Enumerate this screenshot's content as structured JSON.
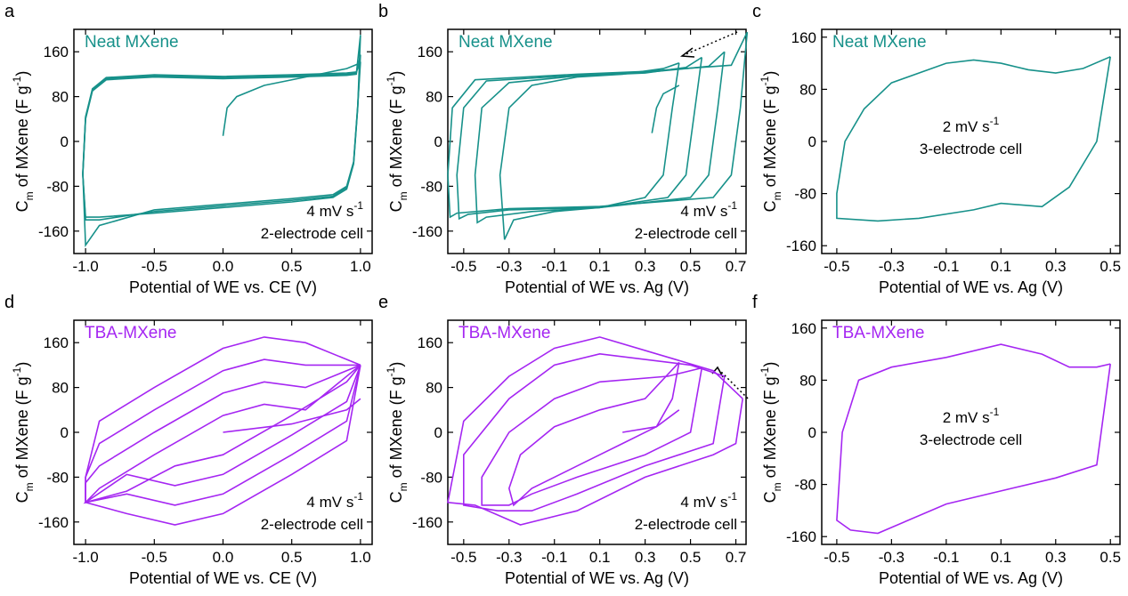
{
  "chart_data": [
    {
      "type": "line",
      "panel": "a",
      "label": "Neat MXene",
      "color": "#17918a",
      "annotation": {
        "main": "4 mV s",
        "sup": "-1",
        "line2": "2-electrode cell"
      },
      "xlabel": "Potential of WE vs. CE (V)",
      "ylabel": {
        "main": "C",
        "sub": "m",
        "rest": " of MXene (F g",
        "sup": "-1",
        "end": ")"
      },
      "xlim": [
        -1.085,
        1.085
      ],
      "ylim": [
        -200,
        200
      ],
      "xticks": [
        {
          "value": -1,
          "label": "-1.0"
        },
        -0.5,
        {
          "value": 0,
          "label": "0.0"
        },
        0.5,
        {
          "value": 1,
          "label": "1.0"
        }
      ],
      "yticks": [
        -160,
        -80,
        0,
        80,
        160
      ],
      "series": [
        {
          "x": [
            1.0,
            0.97,
            0.9,
            0.5,
            0,
            -0.5,
            -0.85,
            -0.95,
            -1.0,
            -1.02,
            -1.0,
            -0.9,
            -0.5,
            0,
            0.5,
            0.8,
            0.9,
            0.95,
            0.98,
            1.0
          ],
          "values": [
            190,
            120,
            118,
            115,
            112,
            115,
            110,
            90,
            40,
            -60,
            -135,
            -135,
            -128,
            -118,
            -108,
            -100,
            -85,
            -40,
            60,
            190
          ]
        },
        {
          "x": [
            1.0,
            0.97,
            0.9,
            0.5,
            0,
            -0.5,
            -0.85,
            -0.95,
            -1.0,
            -1.02,
            -1.0,
            -0.9,
            -0.5,
            0,
            0.5,
            0.8,
            0.9,
            0.95,
            0.98,
            1.0
          ],
          "values": [
            155,
            122,
            120,
            117,
            114,
            117,
            112,
            92,
            42,
            -58,
            -140,
            -140,
            -125,
            -115,
            -105,
            -98,
            -82,
            -38,
            62,
            155
          ]
        },
        {
          "x": [
            1.0,
            0.97,
            0.9,
            0.5,
            0,
            -0.5,
            -0.85,
            -0.95,
            -1.0,
            -1.02,
            -1.0,
            -0.9,
            -0.5,
            0,
            0.5,
            0.8,
            0.9,
            0.95,
            0.98,
            1.0
          ],
          "values": [
            142,
            124,
            122,
            119,
            116,
            119,
            114,
            94,
            44,
            -56,
            -185,
            -150,
            -122,
            -112,
            -102,
            -95,
            -80,
            -36,
            64,
            142
          ]
        },
        {
          "x": [
            0,
            0.03,
            0.1,
            0.3,
            0.6,
            0.9,
            1.0
          ],
          "values": [
            10,
            60,
            80,
            100,
            115,
            130,
            140
          ]
        }
      ]
    },
    {
      "type": "line",
      "panel": "b",
      "label": "Neat MXene",
      "color": "#17918a",
      "annotation": {
        "main": "4 mV s",
        "sup": "-1",
        "line2": "2-electrode cell"
      },
      "xlabel": "Potential of WE vs. Ag (V)",
      "ylabel": {
        "main": "C",
        "sub": "m",
        "rest": " of MXene (F g",
        "sup": "-1",
        "end": ")"
      },
      "xlim": [
        -0.57,
        0.745
      ],
      "ylim": [
        -200,
        200
      ],
      "xticks": [
        -0.5,
        -0.3,
        -0.1,
        0.1,
        0.3,
        0.5,
        0.7
      ],
      "yticks": [
        -160,
        -80,
        0,
        80,
        160
      ],
      "series": [
        {
          "x": [
            0.45,
            0.42,
            0.38,
            0.3,
            0.1,
            -0.1,
            -0.28,
            -0.32,
            -0.34,
            -0.3,
            -0.2,
            0,
            0.2,
            0.38,
            0.45
          ],
          "values": [
            140,
            60,
            -60,
            -100,
            -118,
            -125,
            -140,
            -175,
            -60,
            60,
            100,
            115,
            120,
            130,
            140
          ]
        },
        {
          "x": [
            0.55,
            0.52,
            0.48,
            0.4,
            0.1,
            -0.2,
            -0.4,
            -0.44,
            -0.45,
            -0.42,
            -0.3,
            0,
            0.3,
            0.48,
            0.55
          ],
          "values": [
            150,
            60,
            -60,
            -100,
            -118,
            -125,
            -135,
            -145,
            -60,
            60,
            105,
            117,
            122,
            132,
            150
          ]
        },
        {
          "x": [
            0.65,
            0.62,
            0.58,
            0.5,
            0.1,
            -0.3,
            -0.48,
            -0.52,
            -0.53,
            -0.5,
            -0.4,
            0,
            0.3,
            0.58,
            0.65
          ],
          "values": [
            160,
            60,
            -60,
            -100,
            -118,
            -122,
            -130,
            -138,
            -60,
            60,
            108,
            118,
            123,
            134,
            160
          ]
        },
        {
          "x": [
            0.75,
            0.72,
            0.68,
            0.6,
            0.1,
            -0.3,
            -0.53,
            -0.56,
            -0.57,
            -0.55,
            -0.45,
            0,
            0.3,
            0.68,
            0.75
          ],
          "values": [
            195,
            60,
            -60,
            -100,
            -116,
            -120,
            -128,
            -135,
            -60,
            60,
            110,
            120,
            125,
            136,
            195
          ]
        },
        {
          "x": [
            0.33,
            0.35,
            0.38,
            0.45
          ],
          "values": [
            15,
            60,
            85,
            100
          ]
        }
      ]
    },
    {
      "type": "line",
      "panel": "c",
      "label": "Neat MXene",
      "color": "#17918a",
      "annotation": {
        "main": "2 mV s",
        "sup": "-1",
        "line2": "3-electrode cell"
      },
      "xlabel": "Potential of WE vs. Ag (V)",
      "ylabel": {
        "main": "C",
        "sub": "m",
        "rest": " of MXene (F g",
        "sup": "-1",
        "end": ")"
      },
      "xlim": [
        -0.555,
        0.535
      ],
      "ylim": [
        -172,
        172
      ],
      "xticks": [
        -0.5,
        -0.3,
        -0.1,
        0.1,
        0.3,
        0.5
      ],
      "yticks": [
        -160,
        -80,
        0,
        80,
        160
      ],
      "series": [
        {
          "x": [
            0.5,
            0.45,
            0.35,
            0.25,
            0.1,
            0,
            -0.2,
            -0.35,
            -0.5,
            -0.5,
            -0.47,
            -0.4,
            -0.3,
            -0.1,
            0,
            0.1,
            0.2,
            0.3,
            0.4,
            0.5
          ],
          "values": [
            130,
            0,
            -70,
            -100,
            -95,
            -105,
            -118,
            -122,
            -118,
            -80,
            0,
            50,
            90,
            120,
            125,
            120,
            110,
            105,
            112,
            130
          ]
        }
      ]
    },
    {
      "type": "line",
      "panel": "d",
      "label": "TBA-MXene",
      "color": "#a526f2",
      "annotation": {
        "main": "4 mV s",
        "sup": "-1",
        "line2": "2-electrode cell"
      },
      "xlabel": "Potential of WE vs. CE (V)",
      "ylabel": {
        "main": "C",
        "sub": "m",
        "rest": " of MXene (F g",
        "sup": "-1",
        "end": ")"
      },
      "xlim": [
        -1.085,
        1.085
      ],
      "ylim": [
        -200,
        200
      ],
      "xticks": [
        {
          "value": -1,
          "label": "-1.0"
        },
        -0.5,
        {
          "value": 0,
          "label": "0.0"
        },
        0.5,
        {
          "value": 1,
          "label": "1.0"
        }
      ],
      "yticks": [
        -160,
        -80,
        0,
        80,
        160
      ],
      "series": [
        {
          "x": [
            1,
            0.6,
            0.3,
            0,
            -0.5,
            -0.9,
            -1.0,
            -1.0,
            -0.7,
            -0.35,
            0,
            0.5,
            0.9,
            1.0
          ],
          "values": [
            120,
            160,
            170,
            150,
            80,
            20,
            -80,
            -125,
            -145,
            -165,
            -145,
            -75,
            -15,
            120
          ]
        },
        {
          "x": [
            1,
            0.6,
            0.3,
            0,
            -0.5,
            -0.9,
            -1.0,
            -1.0,
            -0.7,
            -0.35,
            0,
            0.5,
            0.9,
            1.0
          ],
          "values": [
            120,
            120,
            130,
            110,
            40,
            -20,
            -80,
            -125,
            -110,
            -130,
            -110,
            -40,
            20,
            120
          ]
        },
        {
          "x": [
            1,
            0.6,
            0.3,
            0,
            -0.5,
            -0.9,
            -1.0,
            -1.0,
            -0.7,
            -0.35,
            0,
            0.5,
            0.9,
            1.0
          ],
          "values": [
            120,
            80,
            90,
            70,
            0,
            -60,
            -90,
            -125,
            -75,
            -95,
            -75,
            -5,
            55,
            120
          ]
        },
        {
          "x": [
            1,
            0.6,
            0.3,
            0,
            -0.5,
            -0.9,
            -1.0,
            -0.7,
            -0.35,
            0,
            0.5,
            0.9,
            1.0
          ],
          "values": [
            120,
            40,
            50,
            30,
            -40,
            -100,
            -125,
            -105,
            -60,
            -40,
            30,
            90,
            120
          ]
        },
        {
          "x": [
            0,
            0.5,
            0.9,
            1.0
          ],
          "values": [
            0,
            15,
            40,
            60
          ]
        }
      ]
    },
    {
      "type": "line",
      "panel": "e",
      "label": "TBA-MXene",
      "color": "#a526f2",
      "annotation": {
        "main": "4 mV s",
        "sup": "-1",
        "line2": "2-electrode cell"
      },
      "xlabel": "Potential of WE vs. Ag (V)",
      "ylabel": {
        "main": "C",
        "sub": "m",
        "rest": " of MXene (F g",
        "sup": "-1",
        "end": ")"
      },
      "xlim": [
        -0.57,
        0.745
      ],
      "ylim": [
        -200,
        200
      ],
      "xticks": [
        -0.5,
        -0.3,
        -0.1,
        0.1,
        0.3,
        0.5,
        0.7
      ],
      "yticks": [
        -160,
        -80,
        0,
        80,
        160
      ],
      "series": [
        {
          "x": [
            0.45,
            0.3,
            0.1,
            -0.1,
            -0.25,
            -0.3,
            -0.28,
            -0.2,
            0,
            0.2,
            0.35,
            0.42,
            0.45
          ],
          "values": [
            125,
            60,
            40,
            10,
            -40,
            -100,
            -130,
            -100,
            -60,
            -20,
            10,
            60,
            125
          ]
        },
        {
          "x": [
            0.55,
            0.4,
            0.1,
            -0.1,
            -0.3,
            -0.42,
            -0.42,
            -0.3,
            -0.2,
            0,
            0.3,
            0.5,
            0.55
          ],
          "values": [
            115,
            100,
            90,
            60,
            0,
            -80,
            -130,
            -130,
            -110,
            -80,
            -40,
            0,
            115
          ]
        },
        {
          "x": [
            0.65,
            0.5,
            0.1,
            -0.1,
            -0.3,
            -0.5,
            -0.5,
            -0.35,
            -0.2,
            0,
            0.3,
            0.6,
            0.65
          ],
          "values": [
            100,
            120,
            140,
            120,
            60,
            -40,
            -130,
            -140,
            -140,
            -110,
            -60,
            -20,
            100
          ]
        },
        {
          "x": [
            0.73,
            0.6,
            0.1,
            -0.1,
            -0.3,
            -0.5,
            -0.57,
            -0.45,
            -0.25,
            0,
            0.3,
            0.6,
            0.7,
            0.73
          ],
          "values": [
            60,
            110,
            170,
            150,
            100,
            20,
            -125,
            -130,
            -165,
            -140,
            -80,
            -40,
            -20,
            60
          ]
        },
        {
          "x": [
            0.2,
            0.35,
            0.45
          ],
          "values": [
            0,
            10,
            40
          ]
        }
      ]
    },
    {
      "type": "line",
      "panel": "f",
      "label": "TBA-MXene",
      "color": "#a526f2",
      "annotation": {
        "main": "2 mV s",
        "sup": "-1",
        "line2": "3-electrode cell"
      },
      "xlabel": "Potential of WE vs. Ag (V)",
      "ylabel": {
        "main": "C",
        "sub": "m",
        "rest": " of MXene (F g",
        "sup": "-1",
        "end": ")"
      },
      "xlim": [
        -0.555,
        0.535
      ],
      "ylim": [
        -172,
        172
      ],
      "xticks": [
        -0.5,
        -0.3,
        -0.1,
        0.1,
        0.3,
        0.5
      ],
      "yticks": [
        -160,
        -80,
        0,
        80,
        160
      ],
      "series": [
        {
          "x": [
            0.5,
            0.45,
            0.3,
            0.1,
            -0.1,
            -0.35,
            -0.45,
            -0.5,
            -0.48,
            -0.42,
            -0.3,
            -0.1,
            0.1,
            0.25,
            0.35,
            0.45,
            0.5
          ],
          "values": [
            105,
            -50,
            -70,
            -90,
            -110,
            -155,
            -150,
            -135,
            0,
            80,
            100,
            115,
            135,
            120,
            100,
            100,
            105
          ]
        }
      ]
    }
  ]
}
